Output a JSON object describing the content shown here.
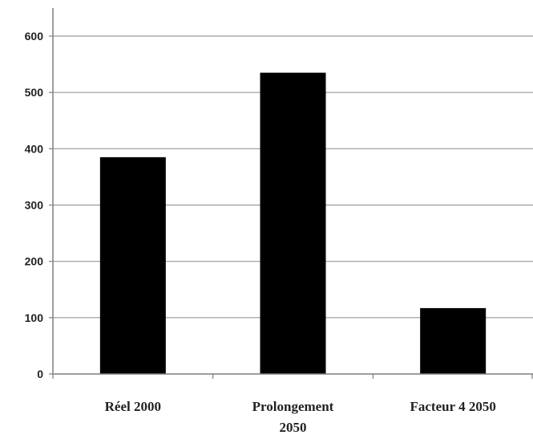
{
  "chart_data": {
    "type": "bar",
    "categories": [
      [
        "Réel 2000"
      ],
      [
        "Prolongement",
        "2050"
      ],
      [
        "Facteur 4 2050"
      ]
    ],
    "values": [
      385,
      535,
      117
    ],
    "yticks": [
      "0",
      "100",
      "200",
      "300",
      "400",
      "500",
      "600"
    ],
    "ylim": [
      0,
      600
    ],
    "grid": true,
    "legend": "none",
    "colors": {
      "bar": "#000000",
      "grid": "#9a9a9a",
      "axis": "#7f7f7f"
    }
  }
}
